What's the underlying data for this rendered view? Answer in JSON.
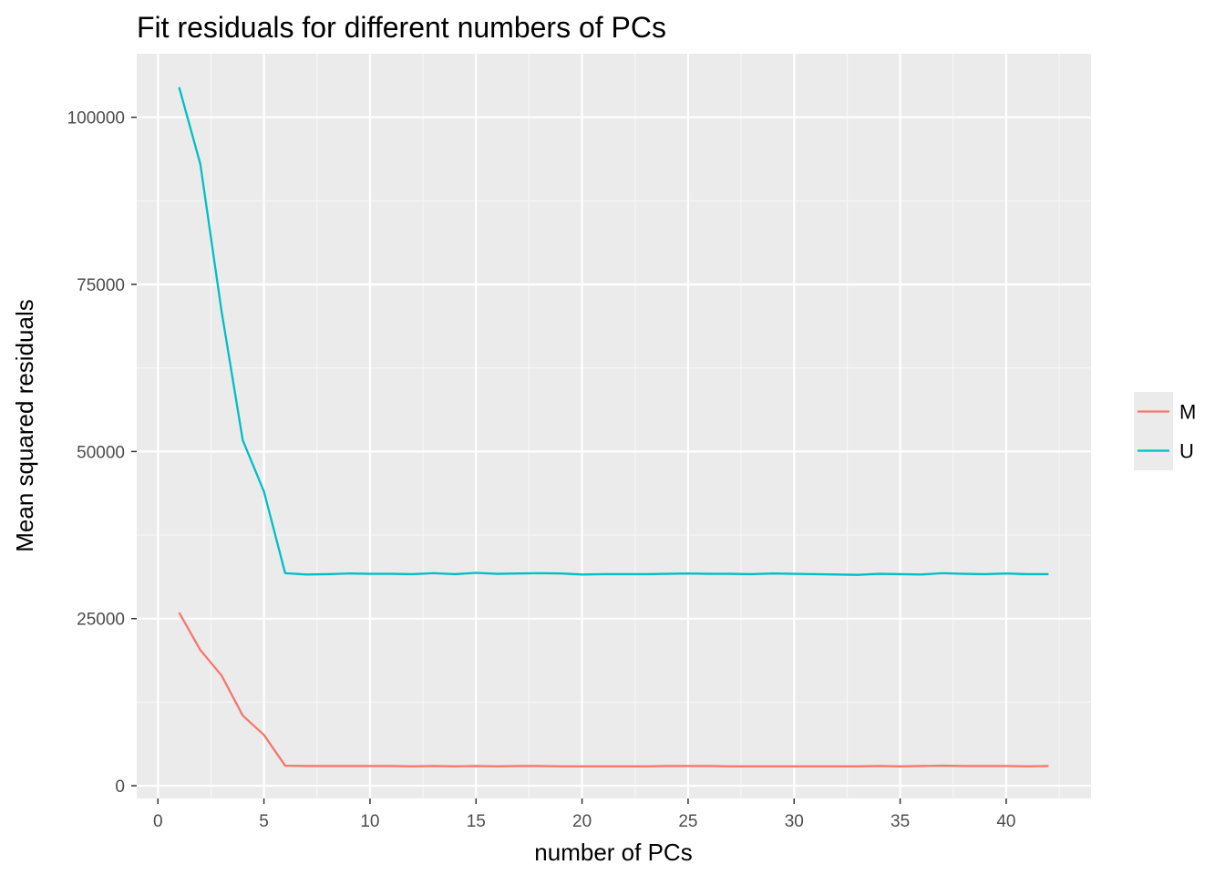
{
  "chart_data": {
    "type": "line",
    "title": "Fit residuals for different numbers of PCs",
    "xlabel": "number of PCs",
    "ylabel": "Mean squared residuals",
    "xlim": [
      -1,
      44
    ],
    "ylim": [
      -1900,
      109500
    ],
    "x_ticks": [
      0,
      5,
      10,
      15,
      20,
      25,
      30,
      35,
      40
    ],
    "y_ticks": [
      0,
      25000,
      50000,
      75000,
      100000
    ],
    "x_tick_labels": [
      "0",
      "5",
      "10",
      "15",
      "20",
      "25",
      "30",
      "35",
      "40"
    ],
    "y_tick_labels": [
      "0",
      "25000",
      "50000",
      "75000",
      "100000"
    ],
    "grid": true,
    "legend_position": "right",
    "x": [
      1,
      2,
      3,
      4,
      5,
      6,
      7,
      8,
      9,
      10,
      11,
      12,
      13,
      14,
      15,
      16,
      17,
      18,
      19,
      20,
      21,
      22,
      23,
      24,
      25,
      26,
      27,
      28,
      29,
      30,
      31,
      32,
      33,
      34,
      35,
      36,
      37,
      38,
      39,
      40,
      41,
      42
    ],
    "series": [
      {
        "name": "M",
        "color": "#F8766D",
        "values": [
          25900,
          20300,
          16500,
          10500,
          7600,
          3000,
          2950,
          2950,
          2950,
          2950,
          2950,
          2900,
          2950,
          2900,
          2950,
          2900,
          2950,
          2950,
          2900,
          2900,
          2900,
          2900,
          2900,
          2950,
          2950,
          2950,
          2900,
          2900,
          2900,
          2900,
          2900,
          2900,
          2900,
          2950,
          2900,
          2950,
          3000,
          2950,
          2950,
          2950,
          2900,
          2950
        ]
      },
      {
        "name": "U",
        "color": "#00BFC4",
        "values": [
          104500,
          93000,
          71000,
          51700,
          44000,
          31800,
          31600,
          31650,
          31750,
          31700,
          31700,
          31650,
          31800,
          31650,
          31850,
          31700,
          31750,
          31800,
          31750,
          31600,
          31650,
          31650,
          31650,
          31700,
          31750,
          31700,
          31700,
          31650,
          31750,
          31700,
          31650,
          31600,
          31550,
          31700,
          31650,
          31600,
          31800,
          31700,
          31650,
          31750,
          31650,
          31650
        ]
      }
    ]
  }
}
